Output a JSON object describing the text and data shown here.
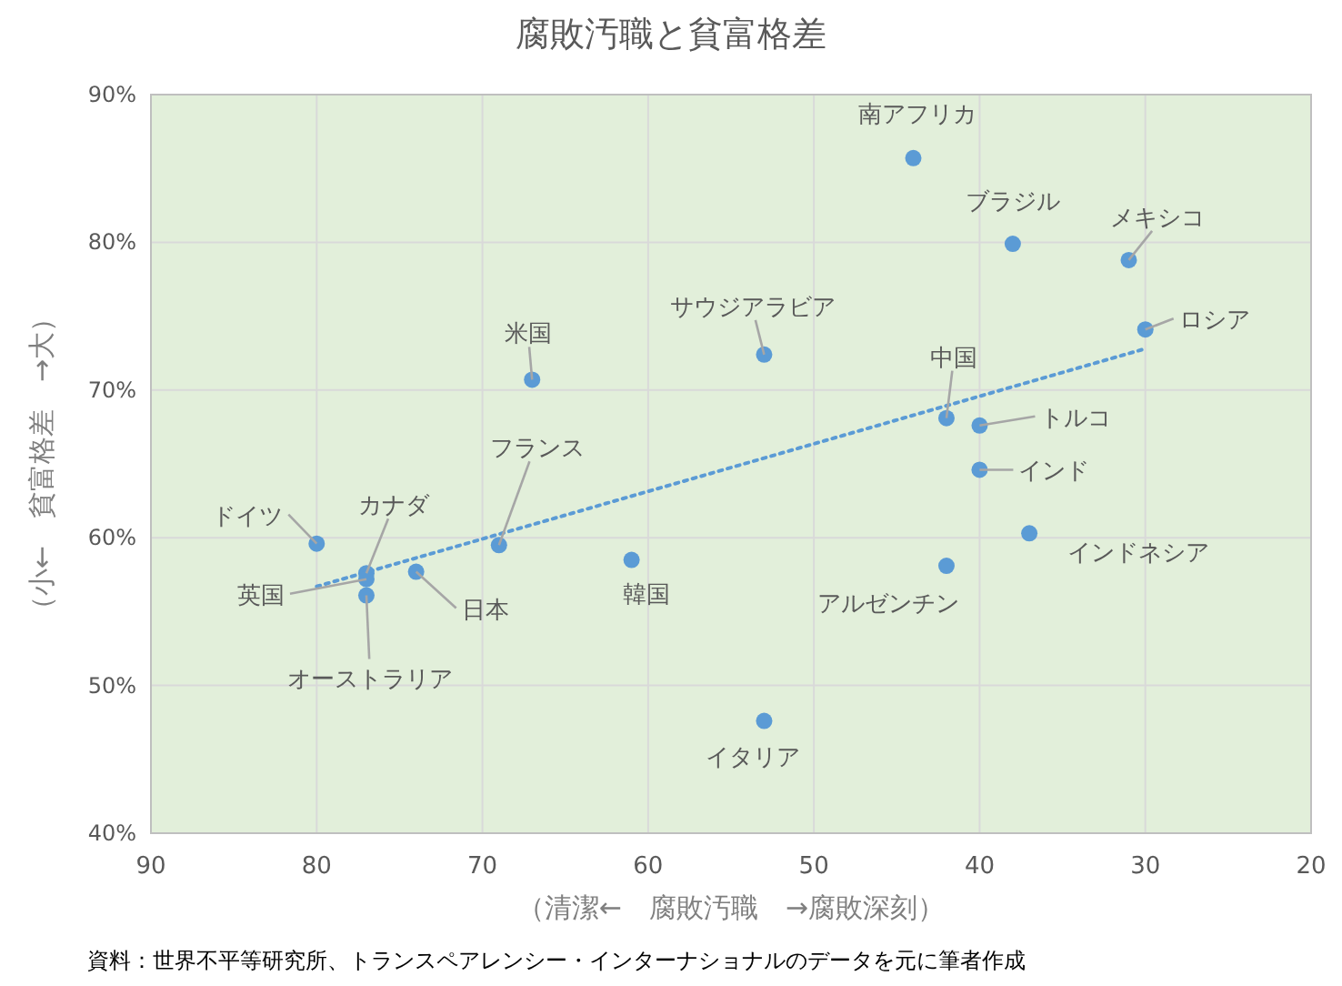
{
  "chart_data": {
    "type": "scatter",
    "title": "腐敗汚職と貧富格差",
    "xlabel": "（清潔←　腐敗汚職　→腐敗深刻）",
    "ylabel": "（小←　貧富格差　→大）",
    "xlim": [
      90,
      20
    ],
    "xticks": [
      90,
      80,
      70,
      60,
      50,
      40,
      30,
      20
    ],
    "ylim": [
      40,
      90
    ],
    "yticks": [
      {
        "value": 40,
        "label": "40%"
      },
      {
        "value": 50,
        "label": "50%"
      },
      {
        "value": 60,
        "label": "60%"
      },
      {
        "value": 70,
        "label": "70%"
      },
      {
        "value": 80,
        "label": "80%"
      },
      {
        "value": 90,
        "label": "90%"
      }
    ],
    "grid": true,
    "series": [
      {
        "color": "#5b9bd5",
        "marker": "circle",
        "x": [
          44,
          38,
          31,
          30,
          53,
          67,
          42,
          40,
          40,
          37,
          42,
          53,
          61,
          74,
          69,
          77,
          80,
          77,
          77
        ],
        "values": [
          85.7,
          79.9,
          78.8,
          74.1,
          72.4,
          70.7,
          68.1,
          67.6,
          64.6,
          60.3,
          58.1,
          47.6,
          58.5,
          57.7,
          59.5,
          57.6,
          59.6,
          57.2,
          56.1
        ]
      },
      {
        "type": "line",
        "color": "#5b9bd5",
        "line_style": "dotted",
        "marker": "none",
        "x": [
          80,
          30
        ],
        "values": [
          56.7,
          72.8
        ]
      }
    ],
    "annotations": [
      {
        "text": "南アフリカ",
        "x": 44,
        "y": 85.7
      },
      {
        "text": "ブラジル",
        "x": 38,
        "y": 79.9
      },
      {
        "text": "メキシコ",
        "x": 31,
        "y": 78.8
      },
      {
        "text": "ロシア",
        "x": 30,
        "y": 74.1
      },
      {
        "text": "サウジアラビア",
        "x": 53,
        "y": 72.4
      },
      {
        "text": "米国",
        "x": 67,
        "y": 70.7
      },
      {
        "text": "中国",
        "x": 42,
        "y": 68.1
      },
      {
        "text": "トルコ",
        "x": 40,
        "y": 67.6
      },
      {
        "text": "インド",
        "x": 40,
        "y": 64.6
      },
      {
        "text": "インドネシア",
        "x": 37,
        "y": 60.3
      },
      {
        "text": "アルゼンチン",
        "x": 42,
        "y": 58.1
      },
      {
        "text": "イタリア",
        "x": 53,
        "y": 47.6
      },
      {
        "text": "韓国",
        "x": 61,
        "y": 58.5
      },
      {
        "text": "日本",
        "x": 74,
        "y": 57.7
      },
      {
        "text": "フランス",
        "x": 69,
        "y": 59.5
      },
      {
        "text": "カナダ",
        "x": 77,
        "y": 57.6
      },
      {
        "text": "ドイツ",
        "x": 80,
        "y": 59.6
      },
      {
        "text": "英国",
        "x": 77,
        "y": 57.2
      },
      {
        "text": "オーストラリア",
        "x": 77,
        "y": 56.1
      },
      "資料：世界不平等研究所、トランスペアレンシー・インターナショナルのデータを元に筆者作成"
    ]
  }
}
